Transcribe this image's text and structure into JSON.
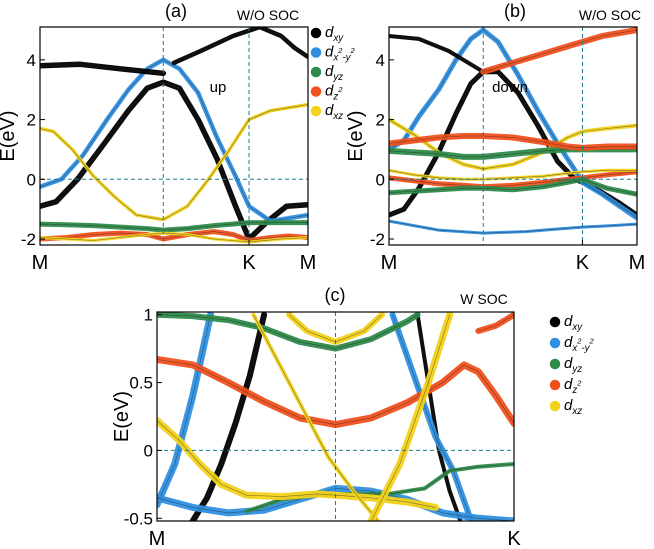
{
  "colors": {
    "dxy": "#000000",
    "dx2y2": "#2f8fe0",
    "dyz": "#2e8b4a",
    "dz2": "#f0501e",
    "dxz": "#f2d21a",
    "guide": "#1b7f8c"
  },
  "legend": [
    {
      "key": "dxy",
      "base": "d",
      "sub": "xy",
      "sup": ""
    },
    {
      "key": "dx2y2",
      "base": "d",
      "sub": "x",
      "sup": "2",
      "sub2": "-y",
      "sup2": "2"
    },
    {
      "key": "dyz",
      "base": "d",
      "sub": "yz",
      "sup": ""
    },
    {
      "key": "dz2",
      "base": "d",
      "sub": "z",
      "sup": "2"
    },
    {
      "key": "dxz",
      "base": "d",
      "sub": "xz",
      "sup": ""
    }
  ],
  "chart_data": [
    {
      "panel": "(a)",
      "type": "line",
      "tag": "W/O SOC",
      "spin_label": "up",
      "ylabel": "E(eV)",
      "ylim": [
        -2.2,
        5.1
      ],
      "yticks": [
        -2,
        0,
        2,
        4
      ],
      "ytick_labels": [
        "-2",
        "0",
        "2",
        "4"
      ],
      "kpath": [
        "M",
        "",
        "K",
        "M"
      ],
      "kpos": [
        0,
        0.46,
        0.78,
        1
      ],
      "hline": 0,
      "series": [
        {
          "orbital": "dxy",
          "x": [
            0,
            0.06,
            0.14,
            0.24,
            0.33,
            0.4,
            0.46,
            0.52,
            0.59,
            0.66,
            0.73,
            0.78,
            0.85,
            0.92,
            1
          ],
          "y": [
            -0.9,
            -0.75,
            0.0,
            1.2,
            2.3,
            3.05,
            3.25,
            3.05,
            2.0,
            0.7,
            -0.9,
            -2.0,
            -1.4,
            -0.9,
            -0.85
          ]
        },
        {
          "orbital": "dx2y2",
          "x": [
            0,
            0.08,
            0.16,
            0.25,
            0.33,
            0.4,
            0.46,
            0.52,
            0.59,
            0.66,
            0.73,
            0.78,
            0.86,
            0.93,
            1
          ],
          "y": [
            -0.25,
            0.0,
            0.8,
            2.0,
            3.0,
            3.7,
            4.0,
            3.7,
            2.9,
            1.4,
            0.1,
            -0.9,
            -1.4,
            -1.3,
            -1.2
          ]
        },
        {
          "orbital": "dxz",
          "x": [
            0,
            0.05,
            0.12,
            0.2,
            0.28,
            0.36,
            0.46,
            0.55,
            0.62,
            0.7,
            0.78,
            0.86,
            0.93,
            1
          ],
          "y": [
            1.7,
            1.6,
            1.0,
            0.1,
            -0.6,
            -1.2,
            -1.35,
            -0.9,
            -0.1,
            0.9,
            2.0,
            2.3,
            2.4,
            2.5
          ]
        },
        {
          "orbital": "dyz",
          "x": [
            0,
            0.1,
            0.2,
            0.3,
            0.4,
            0.46,
            0.55,
            0.65,
            0.78,
            0.9,
            1
          ],
          "y": [
            -1.5,
            -1.52,
            -1.55,
            -1.6,
            -1.65,
            -1.7,
            -1.65,
            -1.55,
            -1.45,
            -1.45,
            -1.45
          ]
        },
        {
          "orbital": "dz2",
          "x": [
            0,
            0.1,
            0.2,
            0.3,
            0.4,
            0.46,
            0.55,
            0.65,
            0.72,
            0.78,
            0.86,
            0.93,
            1
          ],
          "y": [
            -2.0,
            -1.95,
            -1.85,
            -1.8,
            -1.85,
            -2.0,
            -1.85,
            -1.75,
            -1.85,
            -2.05,
            -1.95,
            -1.9,
            -1.95
          ]
        },
        {
          "orbital": "dxz",
          "x": [
            0,
            0.1,
            0.2,
            0.3,
            0.4,
            0.46,
            0.55,
            0.65,
            0.78,
            0.9,
            1
          ],
          "y": [
            -1.95,
            -2.0,
            -2.05,
            -1.95,
            -1.85,
            -1.8,
            -1.85,
            -2.0,
            -2.1,
            -2.0,
            -1.95
          ]
        },
        {
          "orbital": "dxy",
          "x": [
            0,
            0.15,
            0.3,
            0.46
          ],
          "y": [
            3.8,
            3.85,
            3.7,
            3.55
          ]
        },
        {
          "orbital": "dxy",
          "x": [
            0.5,
            0.6,
            0.72,
            0.82,
            0.9,
            0.95,
            1
          ],
          "y": [
            3.9,
            4.3,
            4.8,
            5.1,
            4.8,
            4.4,
            4.1
          ]
        }
      ]
    },
    {
      "panel": "(b)",
      "type": "line",
      "tag": "W/O SOC",
      "spin_label": "down",
      "ylabel": "E(eV)",
      "ylim": [
        -2.2,
        5.1
      ],
      "yticks": [
        -2,
        0,
        2,
        4
      ],
      "ytick_labels": [
        "-2",
        "0",
        "2",
        "4"
      ],
      "kpath": [
        "M",
        "",
        "K",
        "M"
      ],
      "kpos": [
        0,
        0.38,
        0.78,
        1
      ],
      "hline": 0,
      "series": [
        {
          "orbital": "dxy",
          "x": [
            0,
            0.06,
            0.12,
            0.2,
            0.27,
            0.33,
            0.38,
            0.44,
            0.52,
            0.6,
            0.68,
            0.75,
            0.78,
            0.85,
            0.93,
            1
          ],
          "y": [
            -1.2,
            -1.0,
            -0.3,
            0.9,
            2.2,
            3.2,
            3.6,
            3.6,
            2.9,
            1.8,
            0.6,
            0.0,
            -0.1,
            -0.4,
            -0.8,
            -1.2
          ]
        },
        {
          "orbital": "dx2y2",
          "x": [
            0,
            0.06,
            0.12,
            0.2,
            0.27,
            0.33,
            0.38,
            0.44,
            0.52,
            0.6,
            0.68,
            0.75,
            0.78,
            0.86,
            0.93,
            1
          ],
          "y": [
            1.0,
            1.3,
            2.1,
            3.0,
            4.0,
            4.7,
            5.0,
            4.6,
            3.5,
            2.3,
            1.2,
            0.3,
            -0.1,
            -0.5,
            -0.9,
            -1.3
          ]
        },
        {
          "orbital": "dx2y2",
          "x": [
            0,
            0.2,
            0.38,
            0.55,
            0.7,
            0.78,
            0.9,
            1
          ],
          "y": [
            -1.4,
            -1.7,
            -1.8,
            -1.75,
            -1.65,
            -1.6,
            -1.55,
            -1.5
          ]
        },
        {
          "orbital": "dxz",
          "x": [
            0,
            0.1,
            0.2,
            0.3,
            0.38,
            0.5,
            0.62,
            0.72,
            0.78,
            0.88,
            1
          ],
          "y": [
            2.0,
            1.5,
            0.9,
            0.5,
            0.35,
            0.5,
            0.9,
            1.4,
            1.6,
            1.7,
            1.8
          ]
        },
        {
          "orbital": "dyz",
          "x": [
            0,
            0.1,
            0.2,
            0.3,
            0.38,
            0.5,
            0.62,
            0.72,
            0.78,
            0.88,
            1
          ],
          "y": [
            0.95,
            0.9,
            0.85,
            0.75,
            0.75,
            0.85,
            0.95,
            1.0,
            1.0,
            1.0,
            1.0
          ]
        },
        {
          "orbital": "dz2",
          "x": [
            0,
            0.1,
            0.2,
            0.3,
            0.38,
            0.5,
            0.62,
            0.72,
            0.78,
            0.88,
            1
          ],
          "y": [
            1.2,
            1.3,
            1.4,
            1.45,
            1.45,
            1.4,
            1.25,
            1.1,
            1.05,
            1.1,
            1.1
          ]
        },
        {
          "orbital": "dz2",
          "x": [
            0,
            0.1,
            0.2,
            0.3,
            0.38,
            0.5,
            0.62,
            0.72,
            0.78,
            0.88,
            1
          ],
          "y": [
            0.05,
            -0.05,
            -0.15,
            -0.2,
            -0.25,
            -0.2,
            -0.1,
            0.0,
            0.05,
            0.15,
            0.25
          ]
        },
        {
          "orbital": "dyz",
          "x": [
            0,
            0.1,
            0.2,
            0.3,
            0.38,
            0.5,
            0.62,
            0.72,
            0.78,
            0.88,
            1
          ],
          "y": [
            -0.45,
            -0.4,
            -0.35,
            -0.3,
            -0.3,
            -0.35,
            -0.25,
            -0.1,
            0.0,
            -0.3,
            -0.5
          ]
        },
        {
          "orbital": "dxz",
          "x": [
            0,
            0.1,
            0.2,
            0.3,
            0.38,
            0.5,
            0.62,
            0.72,
            0.78,
            0.88,
            1
          ],
          "y": [
            0.3,
            0.15,
            0.05,
            0.0,
            0.0,
            0.05,
            0.1,
            0.2,
            0.25,
            0.3,
            0.3
          ]
        },
        {
          "orbital": "dxy",
          "x": [
            0,
            0.12,
            0.24,
            0.38
          ],
          "y": [
            4.8,
            4.7,
            4.3,
            3.6
          ]
        },
        {
          "orbital": "dz2",
          "x": [
            0.38,
            0.5,
            0.62,
            0.74,
            0.86,
            1
          ],
          "y": [
            3.6,
            3.9,
            4.2,
            4.5,
            4.8,
            5.0
          ]
        }
      ]
    },
    {
      "panel": "(c)",
      "type": "line",
      "tag": "W SOC",
      "ylabel": "E(eV)",
      "ylim": [
        -0.52,
        1.02
      ],
      "yticks": [
        -0.5,
        0,
        0.5,
        1
      ],
      "ytick_labels": [
        "-0.5",
        "0",
        "0.5",
        "1"
      ],
      "kpath": [
        "M",
        "K"
      ],
      "kpos": [
        0,
        1
      ],
      "vline": 0.5,
      "hline": 0,
      "series": [
        {
          "orbital": "dxy",
          "x": [
            0.1,
            0.14,
            0.18,
            0.22,
            0.26,
            0.3
          ],
          "y": [
            -0.52,
            -0.35,
            -0.1,
            0.2,
            0.55,
            1.0
          ]
        },
        {
          "orbital": "dxy",
          "x": [
            0.73,
            0.76,
            0.79,
            0.82,
            0.85
          ],
          "y": [
            1.0,
            0.5,
            0.0,
            -0.3,
            -0.52
          ]
        },
        {
          "orbital": "dx2y2",
          "x": [
            0.0,
            0.05,
            0.1,
            0.15
          ],
          "y": [
            -0.4,
            -0.1,
            0.4,
            1.0
          ]
        },
        {
          "orbital": "dx2y2",
          "x": [
            0.66,
            0.72,
            0.78,
            0.83,
            0.88
          ],
          "y": [
            1.0,
            0.55,
            0.1,
            -0.15,
            -0.52
          ]
        },
        {
          "orbital": "dx2y2",
          "x": [
            0.0,
            0.1,
            0.2,
            0.3,
            0.4,
            0.5,
            0.6,
            0.7,
            0.8,
            0.9,
            1.0
          ],
          "y": [
            -0.35,
            -0.42,
            -0.46,
            -0.44,
            -0.36,
            -0.28,
            -0.3,
            -0.36,
            -0.46,
            -0.5,
            -0.52
          ]
        },
        {
          "orbital": "dyz",
          "x": [
            0.0,
            0.1,
            0.2,
            0.3,
            0.4,
            0.5,
            0.6,
            0.7,
            0.73
          ],
          "y": [
            1.0,
            0.99,
            0.96,
            0.9,
            0.8,
            0.75,
            0.82,
            0.95,
            1.0
          ]
        },
        {
          "orbital": "dyz",
          "x": [
            0.25,
            0.35,
            0.45,
            0.55,
            0.65,
            0.75,
            0.82,
            0.9,
            1.0
          ],
          "y": [
            -0.45,
            -0.36,
            -0.33,
            -0.32,
            -0.32,
            -0.28,
            -0.15,
            -0.12,
            -0.1
          ]
        },
        {
          "orbital": "dz2",
          "x": [
            0.0,
            0.1,
            0.2,
            0.3,
            0.4,
            0.5,
            0.6,
            0.7,
            0.8,
            0.86,
            0.9,
            0.95,
            1.0
          ],
          "y": [
            0.67,
            0.63,
            0.5,
            0.36,
            0.24,
            0.19,
            0.24,
            0.35,
            0.5,
            0.63,
            0.58,
            0.4,
            0.2
          ]
        },
        {
          "orbital": "dz2",
          "x": [
            0.9,
            0.95,
            1.0
          ],
          "y": [
            0.88,
            0.92,
            1.0
          ]
        },
        {
          "orbital": "dxz",
          "x": [
            0.0,
            0.06,
            0.12,
            0.18,
            0.25,
            0.35,
            0.45,
            0.5,
            0.6,
            0.7,
            0.78
          ],
          "y": [
            0.22,
            0.08,
            -0.1,
            -0.25,
            -0.33,
            -0.34,
            -0.32,
            -0.33,
            -0.35,
            -0.38,
            -0.42
          ]
        },
        {
          "orbital": "dxz",
          "x": [
            0.37,
            0.42,
            0.5,
            0.58,
            0.63
          ],
          "y": [
            1.0,
            0.88,
            0.8,
            0.88,
            1.0
          ]
        },
        {
          "orbital": "dxz",
          "x": [
            0.27,
            0.35,
            0.42,
            0.48,
            0.55,
            0.62
          ],
          "y": [
            1.0,
            0.6,
            0.25,
            -0.05,
            -0.3,
            -0.52
          ]
        },
        {
          "orbital": "dxz",
          "x": [
            0.6,
            0.68,
            0.76,
            0.82
          ],
          "y": [
            -0.52,
            -0.1,
            0.5,
            1.0
          ]
        }
      ]
    }
  ]
}
